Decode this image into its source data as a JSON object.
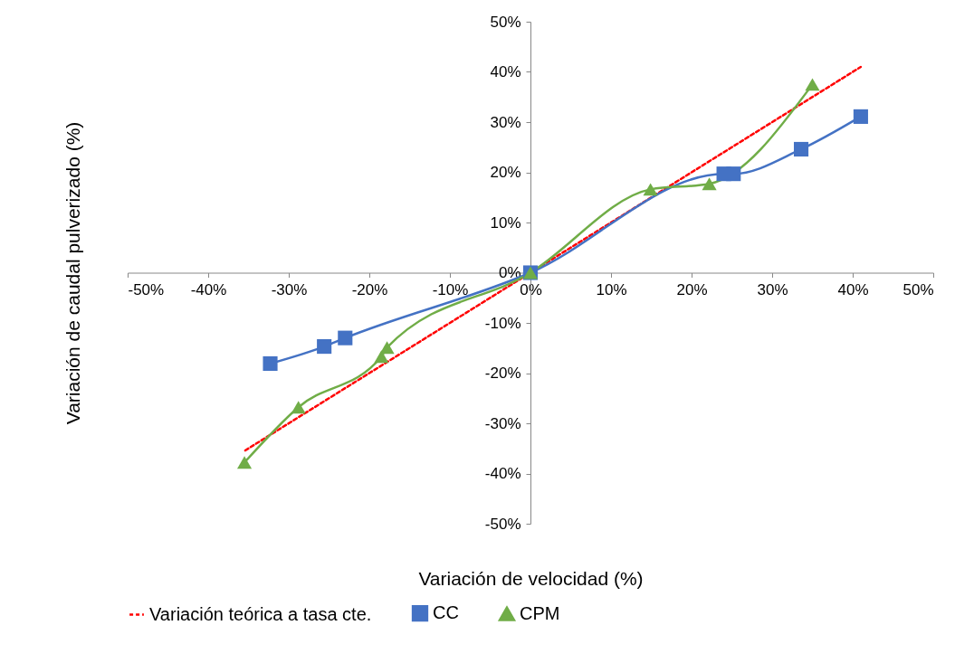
{
  "chart_data": {
    "type": "line",
    "xlabel": "Variación de velocidad (%)",
    "ylabel": "Variación de caudal pulverizado (%)",
    "series": [
      {
        "name": "Variación teórica a tasa cte.",
        "color": "#ff0000",
        "x": [
          -35.4,
          41.0
        ],
        "values": [
          -35.4,
          41.0
        ],
        "marker": "none",
        "line_style": "dashed"
      },
      {
        "name": "CC",
        "color": "#4472c4",
        "x": [
          -32.3,
          -25.6,
          -23.0,
          0,
          24.0,
          25.2,
          33.6,
          41.0
        ],
        "values": [
          -18.1,
          -14.7,
          -13.0,
          0,
          19.7,
          19.7,
          24.6,
          31.1
        ],
        "marker": "square",
        "line_style": "solid"
      },
      {
        "name": "CPM",
        "color": "#70ad47",
        "x": [
          -35.5,
          -28.8,
          -18.5,
          -17.8,
          0,
          14.9,
          22.2,
          35.0
        ],
        "values": [
          -37.8,
          -26.8,
          -16.7,
          -14.9,
          0,
          16.6,
          17.7,
          37.5
        ],
        "marker": "triangle",
        "line_style": "solid"
      }
    ],
    "xlim": [
      -50,
      50
    ],
    "ylim": [
      -50,
      50
    ],
    "xticks": [
      {
        "value": -50,
        "label": "-50%"
      },
      {
        "value": -40,
        "label": "-40%"
      },
      {
        "value": -30,
        "label": "-30%"
      },
      {
        "value": -20,
        "label": "-20%"
      },
      {
        "value": -10,
        "label": "-10%"
      },
      {
        "value": 0,
        "label": "0%"
      },
      {
        "value": 10,
        "label": "10%"
      },
      {
        "value": 20,
        "label": "20%"
      },
      {
        "value": 30,
        "label": "30%"
      },
      {
        "value": 40,
        "label": "40%"
      },
      {
        "value": 50,
        "label": "50%"
      }
    ],
    "yticks": [
      {
        "value": -50,
        "label": "-50%"
      },
      {
        "value": -40,
        "label": "-40%"
      },
      {
        "value": -30,
        "label": "-30%"
      },
      {
        "value": -20,
        "label": "-20%"
      },
      {
        "value": -10,
        "label": "-10%"
      },
      {
        "value": 0,
        "label": "0%"
      },
      {
        "value": 10,
        "label": "10%"
      },
      {
        "value": 20,
        "label": "20%"
      },
      {
        "value": 30,
        "label": "30%"
      },
      {
        "value": 40,
        "label": "40%"
      },
      {
        "value": 50,
        "label": "50%"
      }
    ],
    "grid": false,
    "legend": "bottom"
  }
}
